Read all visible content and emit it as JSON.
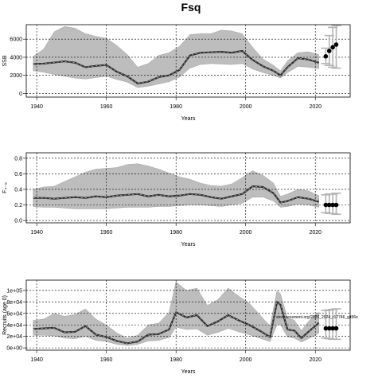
{
  "figure": {
    "title": "Fsq"
  },
  "chart_data": [
    {
      "type": "area",
      "panel": "ssb",
      "ylabel": "SSB",
      "xlabel": "Years",
      "xlim": [
        1937,
        2030
      ],
      "ylim": [
        -400,
        7600
      ],
      "x_ticks": [
        1940,
        1960,
        1980,
        2000,
        2020
      ],
      "y_ticks": [
        0,
        2000,
        4000,
        6000
      ],
      "y_tick_labels": [
        "0",
        "2000",
        "4000",
        "6000"
      ],
      "grid": true,
      "years": [
        1939,
        1942,
        1945,
        1948,
        1951,
        1954,
        1957,
        1960,
        1963,
        1966,
        1969,
        1972,
        1975,
        1978,
        1981,
        1984,
        1987,
        1990,
        1993,
        1996,
        1999,
        2002,
        2005,
        2008,
        2010,
        2012,
        2015,
        2018,
        2021
      ],
      "median": [
        3250,
        3300,
        3420,
        3550,
        3400,
        2900,
        3050,
        3150,
        2400,
        1900,
        1100,
        1300,
        1800,
        2000,
        2600,
        4200,
        4500,
        4550,
        4600,
        4500,
        4700,
        3700,
        3000,
        2500,
        2000,
        2900,
        3900,
        3750,
        3400
      ],
      "lower": [
        2500,
        2350,
        2100,
        1900,
        1700,
        1600,
        1750,
        1900,
        1550,
        1250,
        650,
        800,
        1050,
        1300,
        1800,
        2800,
        3200,
        3300,
        3250,
        3200,
        3300,
        2700,
        2300,
        2000,
        1700,
        2300,
        3000,
        2900,
        2750
      ],
      "upper": [
        4100,
        4900,
        6800,
        7400,
        7200,
        6600,
        6300,
        6100,
        5300,
        4300,
        2900,
        3300,
        4200,
        4500,
        5200,
        6500,
        6600,
        6600,
        7000,
        6900,
        6600,
        5100,
        3800,
        3100,
        2500,
        3600,
        4500,
        4600,
        4300
      ],
      "forecast_years": [
        2023,
        2024,
        2025,
        2026
      ],
      "forecast_median": [
        4100,
        4700,
        5100,
        5400
      ],
      "forecast_lower": [
        3300,
        3100,
        2900,
        2800
      ],
      "forecast_upper": [
        5000,
        6400,
        7300,
        7500
      ]
    },
    {
      "type": "area",
      "panel": "f",
      "ylabel": "F₄₋₈",
      "xlabel": "Years",
      "xlim": [
        1937,
        2030
      ],
      "ylim": [
        -0.03,
        0.87
      ],
      "x_ticks": [
        1940,
        1960,
        1980,
        2000,
        2020
      ],
      "y_ticks": [
        0.0,
        0.2,
        0.4,
        0.6,
        0.8
      ],
      "y_tick_labels": [
        "0.0",
        "0.2",
        "0.4",
        "0.6",
        "0.8"
      ],
      "grid": true,
      "years": [
        1939,
        1942,
        1945,
        1948,
        1951,
        1954,
        1957,
        1960,
        1963,
        1966,
        1969,
        1972,
        1975,
        1978,
        1981,
        1984,
        1987,
        1990,
        1993,
        1996,
        1999,
        2002,
        2005,
        2008,
        2010,
        2012,
        2015,
        2018,
        2021
      ],
      "median": [
        0.29,
        0.29,
        0.28,
        0.29,
        0.3,
        0.29,
        0.31,
        0.3,
        0.32,
        0.33,
        0.34,
        0.31,
        0.33,
        0.31,
        0.32,
        0.34,
        0.33,
        0.3,
        0.28,
        0.31,
        0.34,
        0.44,
        0.43,
        0.35,
        0.23,
        0.25,
        0.3,
        0.28,
        0.24
      ],
      "lower": [
        0.18,
        0.17,
        0.17,
        0.16,
        0.15,
        0.15,
        0.15,
        0.15,
        0.16,
        0.17,
        0.17,
        0.17,
        0.18,
        0.18,
        0.19,
        0.2,
        0.2,
        0.19,
        0.18,
        0.2,
        0.22,
        0.3,
        0.3,
        0.25,
        0.17,
        0.18,
        0.21,
        0.2,
        0.17
      ],
      "upper": [
        0.4,
        0.43,
        0.44,
        0.5,
        0.56,
        0.62,
        0.66,
        0.67,
        0.68,
        0.72,
        0.73,
        0.7,
        0.66,
        0.61,
        0.56,
        0.53,
        0.48,
        0.45,
        0.44,
        0.47,
        0.55,
        0.64,
        0.58,
        0.48,
        0.31,
        0.34,
        0.4,
        0.38,
        0.32
      ],
      "forecast_years": [
        2023,
        2024,
        2025,
        2026
      ],
      "forecast_median": [
        0.2,
        0.2,
        0.2,
        0.2
      ],
      "forecast_lower": [
        0.1,
        0.09,
        0.09,
        0.08
      ],
      "forecast_upper": [
        0.33,
        0.34,
        0.34,
        0.35
      ]
    },
    {
      "type": "area",
      "panel": "recruits",
      "ylabel": "Recruits (age 0)",
      "xlabel": "Years",
      "xlim": [
        1937,
        2030
      ],
      "ylim": [
        -4000,
        118000
      ],
      "x_ticks": [
        1940,
        1960,
        1980,
        2000,
        2020
      ],
      "y_ticks": [
        0,
        20000,
        40000,
        60000,
        80000,
        100000
      ],
      "y_tick_labels": [
        "0e+00",
        "2e+04",
        "4e+04",
        "6e+04",
        "8e+04",
        "1e+05"
      ],
      "grid": true,
      "years": [
        1939,
        1942,
        1945,
        1948,
        1951,
        1954,
        1957,
        1960,
        1963,
        1966,
        1969,
        1972,
        1975,
        1978,
        1980,
        1983,
        1986,
        1989,
        1992,
        1995,
        1998,
        2001,
        2004,
        2007,
        2009,
        2010,
        2012,
        2014,
        2016,
        2018,
        2020,
        2021
      ],
      "median": [
        33000,
        34000,
        35000,
        27000,
        28000,
        38000,
        23000,
        19000,
        12000,
        8000,
        11000,
        23000,
        24000,
        32000,
        62000,
        53000,
        57000,
        38000,
        46000,
        57000,
        48000,
        40000,
        30000,
        19000,
        80000,
        75000,
        32000,
        30000,
        17000,
        28000,
        38000,
        44000
      ],
      "lower": [
        22000,
        22000,
        21000,
        17000,
        16000,
        20000,
        13000,
        11000,
        6000,
        4000,
        6000,
        12000,
        13000,
        18000,
        36000,
        32000,
        33000,
        22000,
        27000,
        34000,
        28000,
        23000,
        17000,
        11000,
        40000,
        40000,
        19000,
        17000,
        10000,
        16000,
        22000,
        26000
      ],
      "upper": [
        48000,
        50000,
        60000,
        55000,
        58000,
        68000,
        50000,
        40000,
        26000,
        17000,
        22000,
        40000,
        43000,
        62000,
        115000,
        100000,
        104000,
        74000,
        84000,
        104000,
        90000,
        78000,
        58000,
        38000,
        100000,
        94000,
        52000,
        48000,
        30000,
        46000,
        58000,
        62000
      ],
      "forecast_years": [
        2023,
        2024,
        2025,
        2026
      ],
      "forecast_median": [
        34000,
        34000,
        34000,
        34000
      ],
      "forecast_lower": [
        17000,
        16000,
        15000,
        15000
      ],
      "forecast_upper": [
        65000,
        66000,
        67000,
        68000
      ],
      "annotation": "stocksessment.org/2020_2024_r17746_git56e"
    }
  ]
}
